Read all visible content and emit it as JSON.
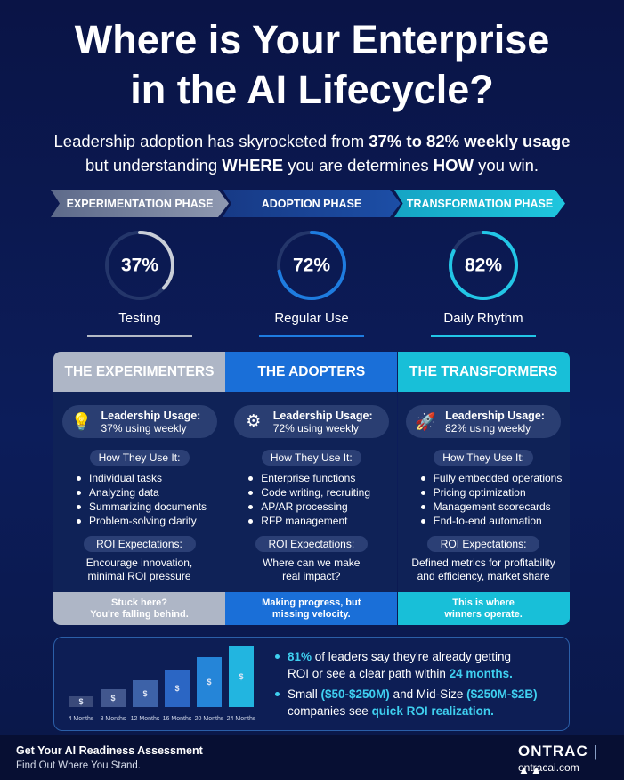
{
  "header": {
    "title": [
      "Where is Your Enterprise",
      "in the AI Lifecycle?"
    ],
    "subtitle": [
      [
        "Leadership adoption has skyrocketed from ",
        "37% to 82% weekly usage"
      ],
      [
        "but understanding ",
        "WHERE",
        " you are determines ",
        "HOW",
        " you win."
      ]
    ]
  },
  "phases": [
    {
      "name": "EXPERIMENTATION PHASE",
      "percent": {
        "value": 37,
        "label": "37%"
      },
      "label": "Testing"
    },
    {
      "name": "ADOPTION PHASE",
      "percent": {
        "value": 72,
        "label": "72%"
      },
      "label": "Regular Use"
    },
    {
      "name": "TRANSFORMATION PHASE",
      "percent": {
        "value": 82,
        "label": "82%"
      },
      "label": "Daily Rhythm"
    }
  ],
  "columns": [
    {
      "title": "THE EXPERIMENTERS",
      "usage_label": "Leadership Usage:",
      "usage_value": "37% using weekly",
      "how_heading": "How They Use It:",
      "uses": [
        "Individual tasks",
        "Analyzing data",
        "Summarizing documents",
        "Problem-solving clarity"
      ],
      "roi_heading": "ROI Expectations:",
      "roi_text": [
        "Encourage innovation,",
        "minimal ROI pressure"
      ],
      "footer": [
        "Stuck here?",
        "You're falling behind."
      ]
    },
    {
      "title": "THE ADOPTERS",
      "usage_label": "Leadership Usage:",
      "usage_value": "72% using weekly",
      "how_heading": "How They Use It:",
      "uses": [
        "Enterprise functions",
        "Code writing, recruiting",
        "AP/AR processing",
        "RFP management"
      ],
      "roi_heading": "ROI Expectations:",
      "roi_text": [
        "Where can we make",
        "real impact?"
      ],
      "footer": [
        "Making progress, but",
        "missing velocity."
      ]
    },
    {
      "title": "THE TRANSFORMERS",
      "usage_label": "Leadership Usage:",
      "usage_value": "82% using weekly",
      "how_heading": "How They Use It:",
      "uses": [
        "Fully embedded operations",
        "Pricing optimization",
        "Management scorecards",
        "End-to-end automation"
      ],
      "roi_heading": "ROI Expectations:",
      "roi_text": [
        "Defined metrics for profitability",
        "and efficiency, market share"
      ],
      "footer": [
        "This is where",
        "winners operate."
      ]
    }
  ],
  "stats": {
    "bar_symbol": "$",
    "bar_labels": [
      "4 Months",
      "8 Months",
      "12 Months",
      "16 Months",
      "20 Months",
      "24 Months"
    ],
    "bullets": [
      [
        [
          "81%",
          " of leaders say they're already getting"
        ],
        [
          "ROI or see a clear path within ",
          "24 months."
        ]
      ],
      [
        [
          "Small ",
          "($50-$250M)",
          " and Mid-Size ",
          "($250M-$2B)"
        ],
        [
          "companies see ",
          "quick ROI realization."
        ]
      ]
    ]
  },
  "footer": {
    "cta_title": "Get Your AI Readiness Assessment",
    "cta_subtitle": "Find Out Where You Stand.",
    "brand": "ONTRAC",
    "url": "ontracai.com"
  }
}
